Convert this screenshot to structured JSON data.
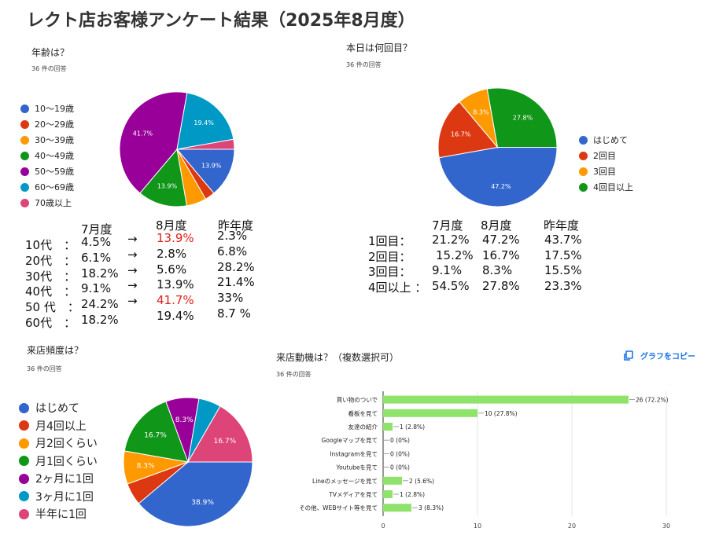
{
  "page_title": "レクト店お客様アンケート結果（2025年8月度）",
  "copy_button_label": "グラフをコピー",
  "colors": {
    "blue": "#3366cc",
    "red": "#dc3912",
    "orange": "#ff9900",
    "green": "#109618",
    "purple": "#990099",
    "cyan": "#0099c6",
    "pink": "#dd4477",
    "bar": "#8fe26a"
  },
  "icons": {
    "copy": "copy-icon"
  },
  "chart_data": [
    {
      "type": "pie",
      "title": "年齢は？",
      "subtitle": "36 件の回答",
      "categories": [
        "10～19歳",
        "20～29歳",
        "30～39歳",
        "40～49歳",
        "50～59歳",
        "60～69歳",
        "70歳以上"
      ],
      "values": [
        13.9,
        2.8,
        5.6,
        13.9,
        41.7,
        19.4,
        2.8
      ],
      "slice_labels": [
        "13.9%",
        "",
        "",
        "13.9%",
        "41.7%",
        "19.4%",
        ""
      ],
      "legend": "left"
    },
    {
      "type": "pie",
      "title": "本日は何回目？",
      "subtitle": "36 件の回答",
      "categories": [
        "はじめて",
        "2回目",
        "3回目",
        "4回目以上"
      ],
      "values": [
        47.2,
        16.7,
        8.3,
        27.8
      ],
      "slice_labels": [
        "47.2%",
        "16.7%",
        "8.3%",
        "27.8%"
      ],
      "legend": "right"
    },
    {
      "type": "pie",
      "title": "来店頻度は？",
      "subtitle": "36 件の回答",
      "categories": [
        "はじめて",
        "月4回以上",
        "月2回くらい",
        "月1回くらい",
        "2ヶ月に1回",
        "3ヶ月に1回",
        "半年に1回"
      ],
      "values": [
        38.9,
        5.6,
        8.3,
        16.7,
        8.3,
        5.6,
        16.7
      ],
      "slice_labels": [
        "38.9%",
        "",
        "8.3%",
        "16.7%",
        "8.3%",
        "",
        "16.7%"
      ],
      "legend": "left"
    },
    {
      "type": "bar",
      "orientation": "horizontal",
      "title": "来店動機は？（複数選択可）",
      "subtitle": "36 件の回答",
      "categories": [
        "買い物のついで",
        "看板を見て",
        "友達の紹介",
        "Googleマップを見て",
        "Instagramを見て",
        "Youtubeを見て",
        "Lineのメッセージを見て",
        "TVメディアを見て",
        "その他、WEBサイト等を見て"
      ],
      "values": [
        26,
        10,
        1,
        0,
        0,
        0,
        2,
        1,
        3
      ],
      "data_labels": [
        "26 (72.2%)",
        "10 (27.8%)",
        "1 (2.8%)",
        "0 (0%)",
        "0 (0%)",
        "0 (0%)",
        "2 (5.6%)",
        "1 (2.8%)",
        "3 (8.3%)"
      ],
      "xlim": [
        0,
        30
      ],
      "xticks": [
        "0",
        "10",
        "20",
        "30"
      ]
    }
  ],
  "age_table": {
    "headers": [
      "7月度",
      "8月度",
      "昨年度"
    ],
    "arrow": "→",
    "rows": [
      {
        "label": "10代　：",
        "jul": "4.5%",
        "arrow": true,
        "aug": "13.9%",
        "aug_red": true,
        "last": "2.3%"
      },
      {
        "label": "20代　：",
        "jul": "6.1%",
        "arrow": true,
        "aug": "2.8%",
        "aug_red": false,
        "last": "6.8%"
      },
      {
        "label": "30代　：",
        "jul": "18.2%",
        "arrow": true,
        "aug": "5.6%",
        "aug_red": false,
        "last": "28.2%"
      },
      {
        "label": "40代　：",
        "jul": "9.1%",
        "arrow": true,
        "aug": "13.9%",
        "aug_red": false,
        "last": "21.4%"
      },
      {
        "label": "50 代　：",
        "jul": "24.2%",
        "arrow": true,
        "aug": "41.7%",
        "aug_red": true,
        "last": "33%"
      },
      {
        "label": "60代　：",
        "jul": "18.2%",
        "arrow": false,
        "aug": "19.4%",
        "aug_red": false,
        "last": "8.7 %"
      }
    ]
  },
  "visit_table": {
    "headers": [
      "7月度",
      "8月度",
      "昨年度"
    ],
    "rows": [
      {
        "label": "1回目：",
        "jul": "21.2%",
        "aug": "47.2%",
        "last": "43.7%"
      },
      {
        "label": "2回目：",
        "jul": "15.2%",
        "aug": "16.7%",
        "last": "17.5%"
      },
      {
        "label": "3回目：",
        "jul": "9.1%",
        "aug": "8.3%",
        "last": "15.5%"
      },
      {
        "label": "4回以上 ：",
        "jul": "54.5%",
        "aug": "27.8%",
        "last": "23.3%"
      }
    ]
  }
}
